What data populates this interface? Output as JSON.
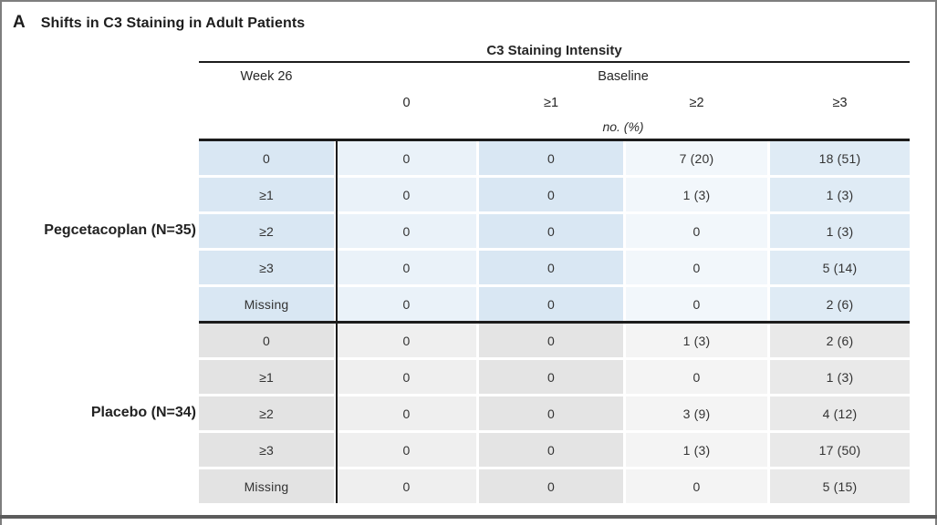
{
  "panel": {
    "label": "A",
    "title": "Shifts in C3 Staining in Adult Patients"
  },
  "table": {
    "title": "C3 Staining Intensity",
    "row_axis_label": "Week 26",
    "col_axis_label": "Baseline",
    "col_headers": [
      "0",
      "≥1",
      "≥2",
      "≥3"
    ],
    "unit_label": "no. (%)",
    "groups": [
      {
        "name": "Pegcetacoplan (N=35)",
        "rows": [
          {
            "label": "0",
            "values": [
              "0",
              "0",
              "7 (20)",
              "18 (51)"
            ]
          },
          {
            "label": "≥1",
            "values": [
              "0",
              "0",
              "1 (3)",
              "1 (3)"
            ]
          },
          {
            "label": "≥2",
            "values": [
              "0",
              "0",
              "0",
              "1 (3)"
            ]
          },
          {
            "label": "≥3",
            "values": [
              "0",
              "0",
              "0",
              "5 (14)"
            ]
          },
          {
            "label": "Missing",
            "values": [
              "0",
              "0",
              "0",
              "2 (6)"
            ]
          }
        ]
      },
      {
        "name": "Placebo (N=34)",
        "rows": [
          {
            "label": "0",
            "values": [
              "0",
              "0",
              "1 (3)",
              "2 (6)"
            ]
          },
          {
            "label": "≥1",
            "values": [
              "0",
              "0",
              "0",
              "1 (3)"
            ]
          },
          {
            "label": "≥2",
            "values": [
              "0",
              "0",
              "3 (9)",
              "4 (12)"
            ]
          },
          {
            "label": "≥3",
            "values": [
              "0",
              "0",
              "1 (3)",
              "17 (50)"
            ]
          },
          {
            "label": "Missing",
            "values": [
              "0",
              "0",
              "0",
              "5 (15)"
            ]
          }
        ]
      }
    ]
  },
  "colors": {
    "pegcetacoplan_column_shades": [
      "#d9e7f3",
      "#eaf2f9",
      "#d9e7f3",
      "#f2f7fb",
      "#dfebf5"
    ],
    "placebo_column_shades": [
      "#e3e3e3",
      "#efefef",
      "#e4e4e4",
      "#f4f4f4",
      "#e9e9e9"
    ],
    "rule_color": "#1c1c1c",
    "frame_border": "#7e7e7e",
    "panel_divider_bar": "#5c5c5c",
    "text_color": "#262626"
  }
}
